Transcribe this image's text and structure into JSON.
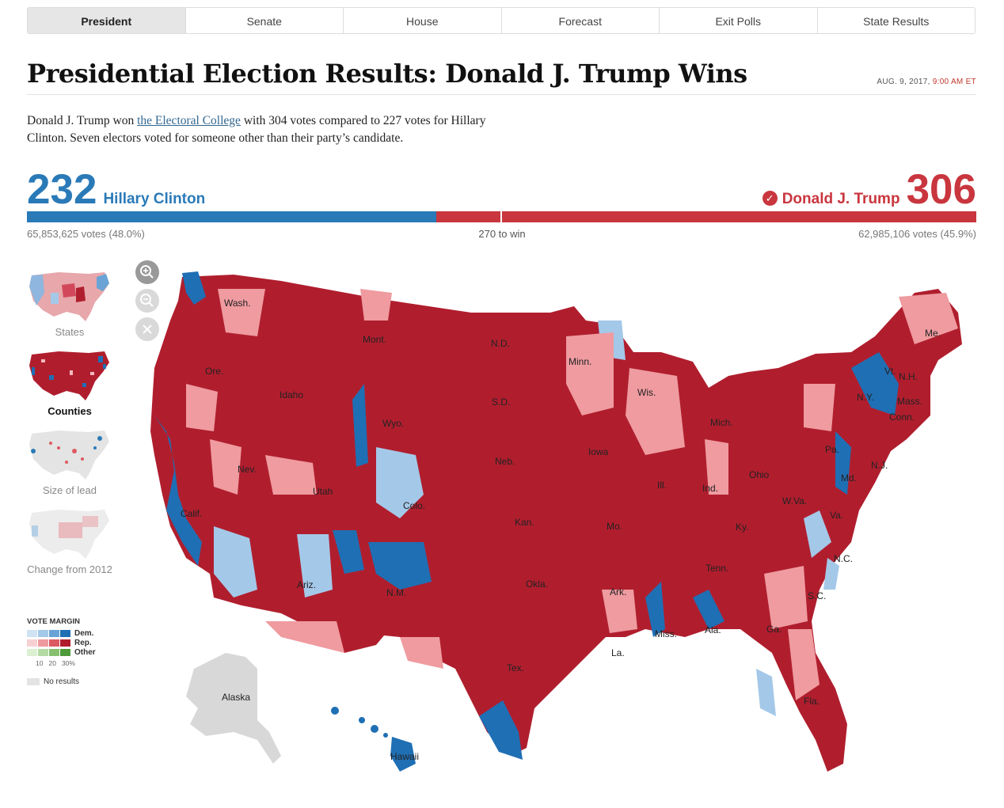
{
  "nav": {
    "tabs": [
      {
        "label": "President",
        "active": true
      },
      {
        "label": "Senate"
      },
      {
        "label": "House"
      },
      {
        "label": "Forecast"
      },
      {
        "label": "Exit Polls"
      },
      {
        "label": "State Results"
      }
    ]
  },
  "header": {
    "title": "Presidential Election Results: Donald J. Trump Wins",
    "date": "AUG. 9, 2017,",
    "time": "9:00 AM ET"
  },
  "intro": {
    "before_link": "Donald J. Trump won ",
    "link_text": "the Electoral College",
    "after_link": " with 304 votes compared to 227 votes for Hillary Clinton. Seven electors voted for someone other than their party’s candidate."
  },
  "results": {
    "democrat": {
      "name": "Hillary Clinton",
      "electoral_votes": "232",
      "votes_text": "65,853,625 votes (48.0%)",
      "color": "#2a7ab8"
    },
    "republican": {
      "name": "Donald J. Trump",
      "electoral_votes": "306",
      "votes_text": "62,985,106 votes (45.9%)",
      "color": "#c9363e",
      "winner": true
    },
    "to_win": "270 to win",
    "dem_share": 0.431
  },
  "views": [
    {
      "label": "States"
    },
    {
      "label": "Counties",
      "active": true
    },
    {
      "label": "Size of lead"
    },
    {
      "label": "Change from 2012"
    }
  ],
  "zoom_controls": [
    {
      "icon": "zoom-in-icon"
    },
    {
      "icon": "zoom-out-icon"
    },
    {
      "icon": "close-icon"
    }
  ],
  "legend": {
    "title": "VOTE MARGIN",
    "rows": [
      {
        "label": "Dem.",
        "colors": [
          "#cfe3f3",
          "#a4c8e8",
          "#6aa3d5",
          "#1f6fb4"
        ]
      },
      {
        "label": "Rep.",
        "colors": [
          "#f6d0d2",
          "#ee9a9f",
          "#dc5a62",
          "#b01e2e"
        ]
      },
      {
        "label": "Other",
        "colors": [
          "#dcefd3",
          "#b5dba4",
          "#86c06f",
          "#4e9a3b"
        ]
      }
    ],
    "ticks": [
      "10",
      "20",
      "30%"
    ],
    "no_results": "No results"
  },
  "map": {
    "state_labels": [
      "Wash.",
      "Ore.",
      "Calif.",
      "Nev.",
      "Idaho",
      "Mont.",
      "Wyo.",
      "Utah",
      "Ariz.",
      "Colo.",
      "N.M.",
      "N.D.",
      "S.D.",
      "Neb.",
      "Kan.",
      "Okla.",
      "Tex.",
      "Minn.",
      "Iowa",
      "Mo.",
      "Ark.",
      "La.",
      "Wis.",
      "Ill.",
      "Mich.",
      "Ind.",
      "Ohio",
      "Ky.",
      "Tenn.",
      "Miss.",
      "Ala.",
      "Ga.",
      "Fla.",
      "S.C.",
      "N.C.",
      "Va.",
      "W.Va.",
      "Pa.",
      "N.Y.",
      "Md.",
      "N.J.",
      "Conn.",
      "Mass.",
      "Vt.",
      "N.H.",
      "Me.",
      "Alaska",
      "Hawaii"
    ],
    "colors": {
      "rep_dark": "#b01e2e",
      "dem_dark": "#1f6fb4",
      "no_results": "#d8d8d8"
    }
  }
}
